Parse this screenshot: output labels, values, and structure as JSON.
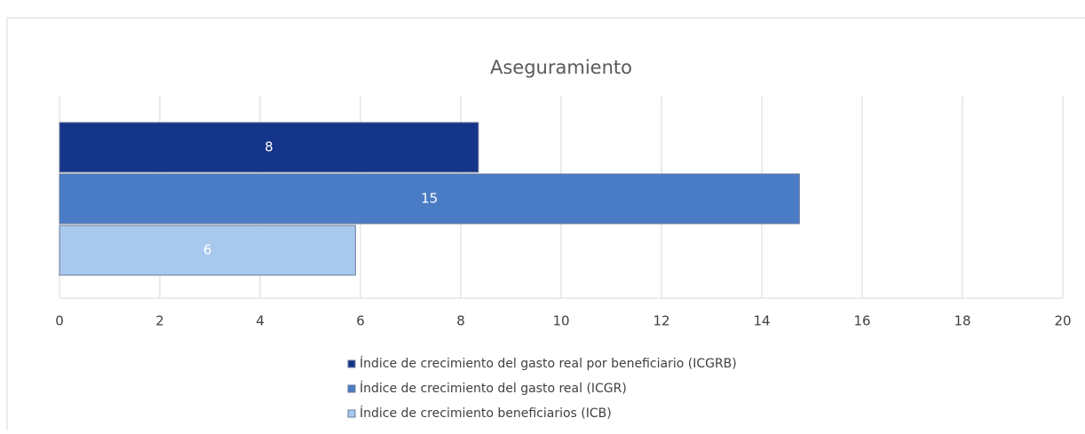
{
  "chart_data": {
    "type": "bar",
    "orientation": "horizontal",
    "title": "Aseguramiento",
    "categories": [
      null
    ],
    "series": [
      {
        "name": "Índice de crecimiento del gasto real por beneficiario (ICGRB)",
        "color": "#15358a",
        "values": [
          8.35
        ],
        "value_labels": [
          "8"
        ]
      },
      {
        "name": "Índice de crecimiento del gasto real (ICGR)",
        "color": "#4a7cc6",
        "values": [
          14.75
        ],
        "value_labels": [
          "15"
        ]
      },
      {
        "name": "Índice de crecimiento beneficiarios (ICB)",
        "color": "#a9c8ee",
        "values": [
          5.9
        ],
        "value_labels": [
          "6"
        ]
      }
    ],
    "xlim": [
      0,
      20
    ],
    "xticks": [
      0,
      2,
      4,
      6,
      8,
      10,
      12,
      14,
      16,
      18,
      20
    ],
    "grid": true,
    "legend": "bottom"
  }
}
